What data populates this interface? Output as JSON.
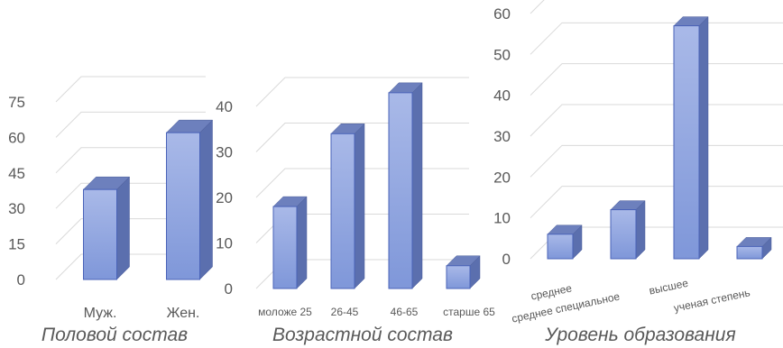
{
  "chart_data": [
    {
      "type": "bar",
      "title": "Половой состав",
      "categories": [
        "Муж.",
        "Жен."
      ],
      "values": [
        38,
        62
      ],
      "ylim": [
        0,
        75
      ],
      "yticks": [
        0,
        15,
        30,
        45,
        60,
        75
      ],
      "grid": true,
      "style": "3d-column",
      "color": "#8fa6e0"
    },
    {
      "type": "bar",
      "title": "Возрастной состав",
      "categories": [
        "моложе 25",
        "26-45",
        "46-65",
        "старше 65"
      ],
      "values": [
        18,
        34,
        43,
        5
      ],
      "ylim": [
        0,
        40
      ],
      "yticks": [
        0,
        10,
        20,
        30,
        40
      ],
      "grid": true,
      "style": "3d-column",
      "color": "#8fa6e0"
    },
    {
      "type": "bar",
      "title": "Уровень образования",
      "categories": [
        "среднее",
        "среднее специальное",
        "высшее",
        "ученая степень"
      ],
      "values": [
        6,
        12,
        57,
        3
      ],
      "ylim": [
        0,
        60
      ],
      "yticks": [
        0,
        10,
        20,
        30,
        40,
        50,
        60
      ],
      "grid": true,
      "style": "3d-column",
      "color": "#8fa6e0"
    }
  ]
}
